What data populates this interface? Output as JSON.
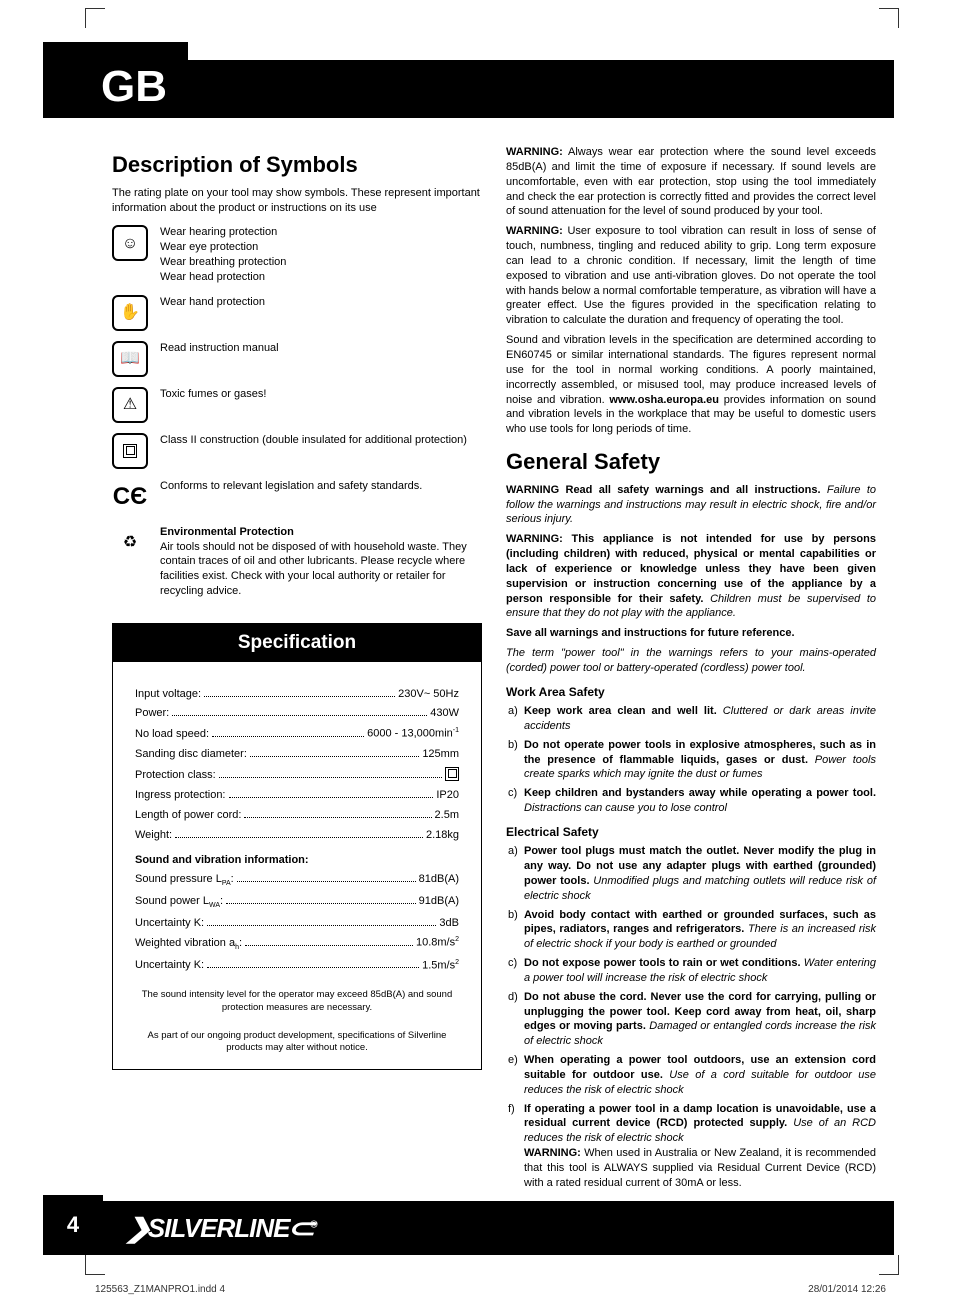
{
  "tab": "GB",
  "section1": {
    "heading": "Description of Symbols",
    "intro": "The rating plate on your tool may show symbols. These represent important information about the product or instructions on its use",
    "symbols": [
      {
        "icon": "ppe-head-icon",
        "lines": [
          "Wear hearing protection",
          "Wear eye protection",
          "Wear breathing protection",
          "Wear head protection"
        ]
      },
      {
        "icon": "glove-icon",
        "lines": [
          "Wear hand protection"
        ]
      },
      {
        "icon": "manual-icon",
        "lines": [
          "Read instruction manual"
        ]
      },
      {
        "icon": "toxic-icon",
        "lines": [
          "Toxic fumes or gases!"
        ]
      },
      {
        "icon": "class2-icon",
        "lines": [
          "Class II construction (double insulated for additional protection)"
        ]
      },
      {
        "icon": "ce-icon",
        "lines": [
          "Conforms to relevant legislation and safety standards."
        ]
      },
      {
        "icon": "recycle-icon",
        "title": "Environmental Protection",
        "lines": [
          "Air tools should not be disposed of with household waste. They contain traces of oil and other lubricants. Please recycle where facilities exist. Check with your local authority or retailer for recycling advice."
        ]
      }
    ]
  },
  "spec": {
    "heading": "Specification",
    "rows": [
      {
        "label": "Input voltage:",
        "value": "230V~ 50Hz"
      },
      {
        "label": "Power:",
        "value": "430W"
      },
      {
        "label": "No load speed:",
        "value": "6000 - 13,000min",
        "sup": "-1"
      },
      {
        "label": "Sanding disc diameter:",
        "value": "125mm"
      },
      {
        "label": "Protection class:",
        "value": "[class2]"
      },
      {
        "label": "Ingress protection:",
        "value": "IP20"
      },
      {
        "label": "Length of power cord:",
        "value": "2.5m"
      },
      {
        "label": "Weight:",
        "value": "2.18kg"
      }
    ],
    "sound_heading": "Sound and vibration information:",
    "sound_rows": [
      {
        "label": "Sound pressure L",
        "sub": "PA",
        "label2": ":",
        "value": "81dB(A)"
      },
      {
        "label": "Sound power L",
        "sub": "WA",
        "label2": ":",
        "value": "91dB(A)"
      },
      {
        "label": "Uncertainty K:",
        "value": "3dB"
      },
      {
        "label": "Weighted vibration a",
        "sub": "h",
        "label2": ":",
        "value": "10.8m/s",
        "sup": "2"
      },
      {
        "label": "Uncertainty K:",
        "value": "1.5m/s",
        "sup": "2"
      }
    ],
    "notes": [
      "The sound intensity level for the operator may exceed 85dB(A) and sound protection measures are necessary.",
      "As part of our ongoing product development, specifications of Silverline products may alter without notice."
    ]
  },
  "right": {
    "warn1": {
      "prefix": "WARNING:",
      "text": " Always wear ear protection where the sound level exceeds 85dB(A) and limit the time of exposure if necessary. If sound levels are uncomfortable, even with ear protection, stop using the tool immediately and check the ear protection is correctly fitted and provides the correct level of sound attenuation for the level of sound produced by your tool."
    },
    "warn2": {
      "prefix": "WARNING:",
      "text": " User exposure to tool vibration can result in loss of sense of touch, numbness, tingling and reduced ability to grip. Long term exposure can lead to a chronic condition. If necessary, limit the length of time exposed to vibration and use anti-vibration gloves. Do not operate the tool with hands below a normal comfortable temperature, as vibration will have a greater effect. Use the figures provided in the specification relating to vibration to calculate the duration and frequency of operating the tool."
    },
    "para3a": "Sound and vibration levels in the specification are determined according to EN60745 or similar international standards. The figures represent normal use for the tool in normal working conditions. A poorly maintained, incorrectly assembled, or misused tool, may produce increased levels of noise and vibration.  ",
    "para3b": "www.osha.europa.eu",
    "para3c": " provides information on sound and vibration levels in the workplace that may be useful to domestic users who use tools for long periods of time.",
    "gs_heading": "General Safety",
    "gs_warn1a": "WARNING Read all safety warnings and all instructions.",
    "gs_warn1b": " Failure to follow the warnings and instructions may result in electric shock, fire and/or serious injury.",
    "gs_warn2a": "WARNING: This appliance is not intended for use by persons (including children) with reduced, physical or mental capabilities or lack of experience or knowledge unless they have been given supervision or instruction concerning use of the appliance by a person responsible for their safety.",
    "gs_warn2b": " Children must be supervised to ensure that they do not play with the appliance.",
    "gs_save": "Save all warnings and instructions for future reference.",
    "gs_term": "The term \"power tool\" in the warnings refers to your mains-operated (corded) power tool or battery-operated (cordless) power tool.",
    "work_h": "Work Area Safety",
    "work": [
      {
        "l": "a)",
        "b": "Keep work area clean and well lit.",
        "i": " Cluttered or dark areas invite accidents"
      },
      {
        "l": "b)",
        "b": "Do not operate power tools in explosive atmospheres, such as in the presence of flammable liquids, gases or dust.",
        "i": " Power tools create sparks which may ignite the dust or fumes"
      },
      {
        "l": "c)",
        "b": "Keep children and bystanders away while operating a power tool.",
        "i": " Distractions can cause you to lose control"
      }
    ],
    "elec_h": "Electrical Safety",
    "elec": [
      {
        "l": "a)",
        "b": "Power tool plugs must match the outlet. Never modify the plug in any way. Do not use any adapter plugs with earthed (grounded) power tools.",
        "i": " Unmodified plugs and matching outlets will reduce risk of electric shock"
      },
      {
        "l": "b)",
        "b": "Avoid body contact with earthed or grounded surfaces, such as pipes, radiators, ranges and refrigerators.",
        "i": " There is an increased risk of electric shock if your body is earthed or grounded"
      },
      {
        "l": "c)",
        "b": "Do not expose power tools to rain or wet conditions.",
        "i": " Water entering a power tool will increase the risk of electric shock"
      },
      {
        "l": "d)",
        "b": "Do not abuse the cord. Never use the cord for carrying, pulling or unplugging the power tool. Keep cord away from heat, oil, sharp edges or moving parts.",
        "i": " Damaged or entangled cords increase the risk of electric shock"
      },
      {
        "l": "e)",
        "b": "When operating a power tool outdoors, use an extension cord suitable for outdoor use.",
        "i": " Use of a cord suitable for outdoor use reduces the risk of electric shock"
      },
      {
        "l": "f)",
        "b": "If operating a power tool in a damp location is unavoidable, use a residual current device (RCD) protected supply.",
        "i": " Use of an RCD reduces the risk of electric shock",
        "extra_b": "WARNING:",
        "extra": " When used in Australia or New Zealand, it is recommended that this tool is ALWAYS supplied via Residual Current Device (RCD) with a rated residual current of 30mA or less."
      }
    ]
  },
  "footer": {
    "page": "4",
    "brand_pre": "❯",
    "brand": "SILVERLINE",
    "brand_post": "⊂",
    "reg": "®"
  },
  "slug": {
    "left": "125563_Z1MANPRO1.indd   4",
    "right": "28/01/2014   12:26"
  }
}
